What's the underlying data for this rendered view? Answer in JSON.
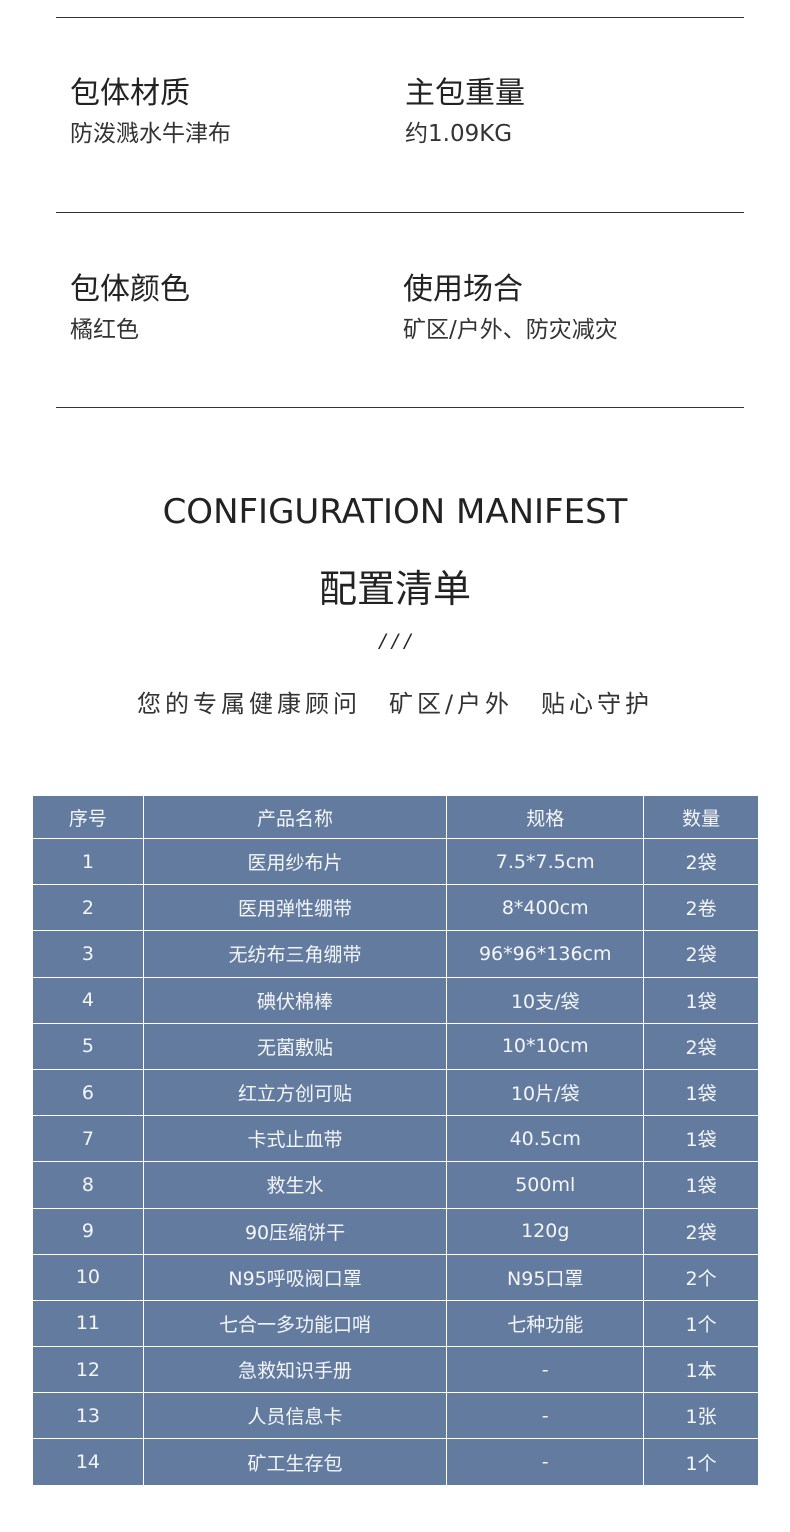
{
  "specs": [
    {
      "title": "包体材质",
      "value": "防泼溅水牛津布"
    },
    {
      "title": "主包重量",
      "value": "约1.09KG"
    },
    {
      "title": "包体颜色",
      "value": "橘红色"
    },
    {
      "title": "使用场合",
      "value": "矿区/户外、防灾减灾"
    }
  ],
  "section": {
    "title_en": "CONFIGURATION MANIFEST",
    "title_cn": "配置清单",
    "divider": "/ / /",
    "subtitle": "您的专属健康顾问　矿区/户外　贴心守护"
  },
  "table": {
    "headers": [
      "序号",
      "产品名称",
      "规格",
      "数量"
    ],
    "rows": [
      [
        "1",
        "医用纱布片",
        "7.5*7.5cm",
        "2袋"
      ],
      [
        "2",
        "医用弹性绷带",
        "8*400cm",
        "2卷"
      ],
      [
        "3",
        "无纺布三角绷带",
        "96*96*136cm",
        "2袋"
      ],
      [
        "4",
        "碘伏棉棒",
        "10支/袋",
        "1袋"
      ],
      [
        "5",
        "无菌敷贴",
        "10*10cm",
        "2袋"
      ],
      [
        "6",
        "红立方创可贴",
        "10片/袋",
        "1袋"
      ],
      [
        "7",
        "卡式止血带",
        "40.5cm",
        "1袋"
      ],
      [
        "8",
        "救生水",
        "500ml",
        "1袋"
      ],
      [
        "9",
        "90压缩饼干",
        "120g",
        "2袋"
      ],
      [
        "10",
        "N95呼吸阀口罩",
        "N95口罩",
        "2个"
      ],
      [
        "11",
        "七合一多功能口哨",
        "七种功能",
        "1个"
      ],
      [
        "12",
        "急救知识手册",
        "-",
        "1本"
      ],
      [
        "13",
        "人员信息卡",
        "-",
        "1张"
      ],
      [
        "14",
        "矿工生存包",
        "-",
        "1个"
      ]
    ]
  },
  "colors": {
    "table_bg": "#637b9e"
  }
}
